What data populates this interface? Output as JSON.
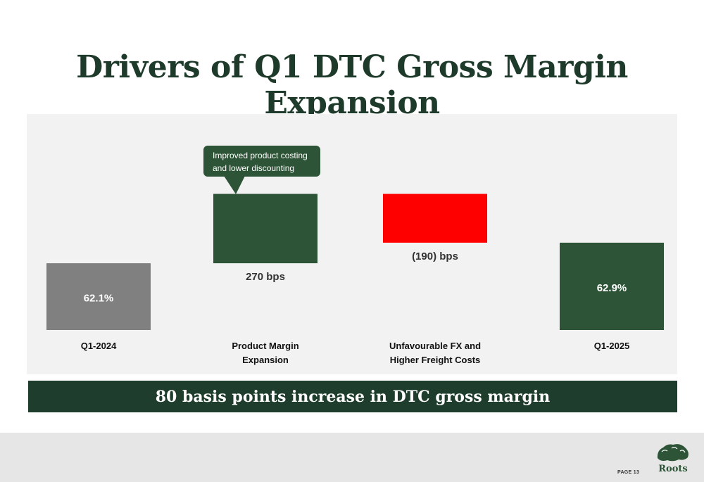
{
  "slide": {
    "title": "Drivers of Q1 DTC Gross Margin Expansion",
    "banner": "80 basis points increase in DTC gross margin",
    "page_label": "PAGE 13",
    "logo_text": "Roots"
  },
  "colors": {
    "title": "#1e3a2b",
    "start_bar": "#808080",
    "increase": "#2d5436",
    "decrease": "#ff0000",
    "end_bar": "#2d5436",
    "banner_bg": "#1f3d2c",
    "callout_bg": "#2d5436"
  },
  "chart_data": {
    "type": "waterfall",
    "unit": "%",
    "categories": [
      "Q1-2024",
      "Product Margin Expansion",
      "Unfavourable FX and Higher Freight Costs",
      "Q1-2025"
    ],
    "category_lines": [
      [
        "Q1-2024"
      ],
      [
        "Product Margin",
        "Expansion"
      ],
      [
        "Unfavourable FX and",
        "Higher Freight Costs"
      ],
      [
        "Q1-2025"
      ]
    ],
    "steps": [
      {
        "kind": "total",
        "value": 62.1,
        "label": "62.1%"
      },
      {
        "kind": "increase",
        "delta_bps": 270,
        "label": "270 bps"
      },
      {
        "kind": "decrease",
        "delta_bps": -190,
        "label": "(190) bps"
      },
      {
        "kind": "total",
        "value": 62.9,
        "label": "62.9%"
      }
    ],
    "annotation": {
      "step_index": 1,
      "lines": [
        "Improved product costing",
        "and lower discounting"
      ]
    }
  }
}
